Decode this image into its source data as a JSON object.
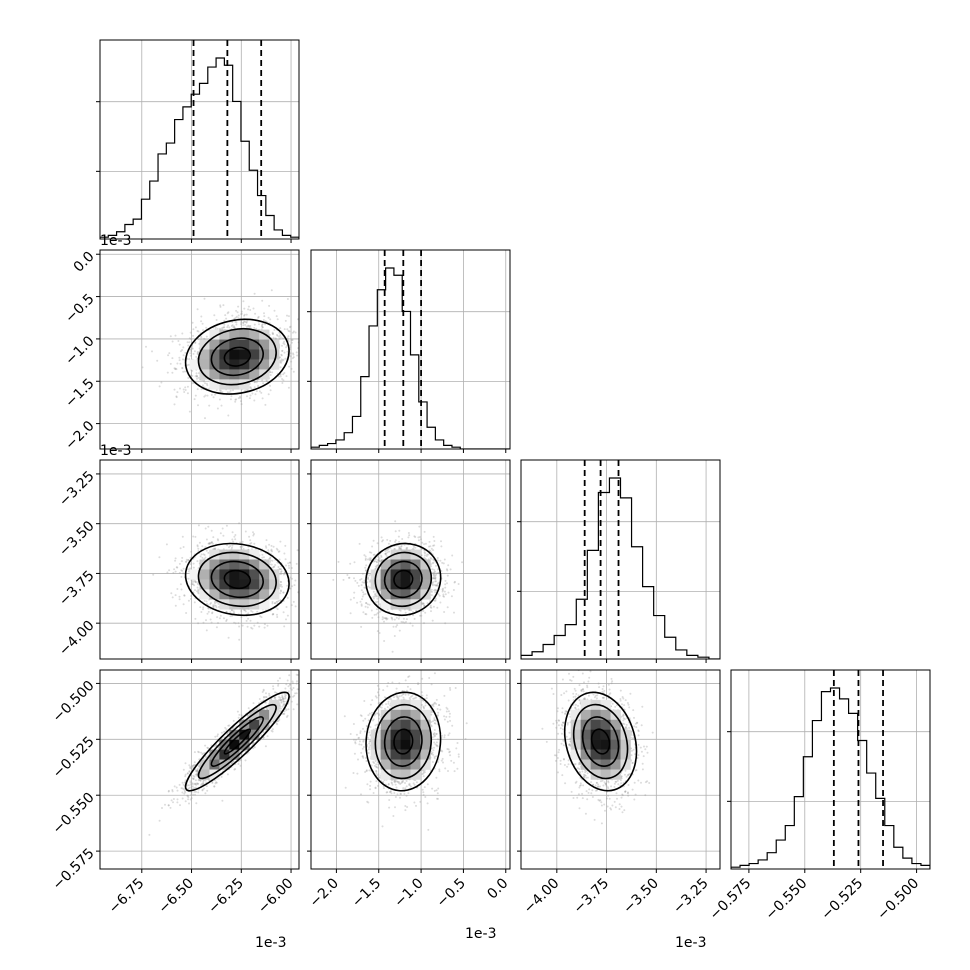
{
  "chart_data": {
    "type": "corner",
    "title": "",
    "colors": {
      "line": "#000000",
      "grid": "#b0b0b0",
      "scatter": "#9a9a9a",
      "density_max": "#000000"
    },
    "offset_labels": {
      "col0": "1e-3",
      "col1": "1e-3",
      "col2": "1e-3",
      "row1": "1e-3",
      "row2": "1e-3"
    },
    "parameters": [
      {
        "name": "",
        "mean": -6.27,
        "std": 0.13,
        "range": [
          -6.96,
          -5.96
        ],
        "ticks": [
          "−6.75",
          "−6.50",
          "−6.25",
          "−6.00"
        ],
        "tick_values": [
          -6.75,
          -6.5,
          -6.25,
          -6.0
        ],
        "quantiles": [
          -6.49,
          -6.32,
          -6.15
        ],
        "hist_density": [
          0.01,
          0.02,
          0.04,
          0.08,
          0.11,
          0.22,
          0.32,
          0.47,
          0.53,
          0.66,
          0.73,
          0.8,
          0.86,
          0.95,
          1.0,
          0.96,
          0.76,
          0.54,
          0.38,
          0.24,
          0.13,
          0.05,
          0.02,
          0.01
        ]
      },
      {
        "name": "",
        "mean": -1.21,
        "std": 0.22,
        "range": [
          -2.3,
          0.05
        ],
        "ticks": [
          "−2.0",
          "−1.5",
          "−1.0",
          "−0.5",
          "0.0"
        ],
        "tick_values": [
          -2.0,
          -1.5,
          -1.0,
          -0.5,
          0.0
        ],
        "quantiles": [
          -1.43,
          -1.21,
          -1.0
        ],
        "hist_density": [
          0.01,
          0.02,
          0.03,
          0.05,
          0.09,
          0.18,
          0.4,
          0.68,
          0.88,
          1.0,
          0.96,
          0.76,
          0.52,
          0.26,
          0.12,
          0.05,
          0.02,
          0.01,
          0.0,
          0.0,
          0.0,
          0.0,
          0.0,
          0.0
        ]
      },
      {
        "name": "",
        "mean": -3.78,
        "std": 0.09,
        "range": [
          -4.18,
          -3.18
        ],
        "ticks": [
          "−4.00",
          "−3.75",
          "−3.50",
          "−3.25"
        ],
        "tick_values": [
          -4.0,
          -3.75,
          -3.5,
          -3.25
        ],
        "quantiles": [
          -3.86,
          -3.78,
          -3.69
        ],
        "hist_density": [
          0.02,
          0.04,
          0.08,
          0.13,
          0.19,
          0.33,
          0.6,
          0.92,
          1.0,
          0.89,
          0.62,
          0.4,
          0.24,
          0.12,
          0.05,
          0.02,
          0.01,
          0.0
        ]
      },
      {
        "name": "",
        "mean": -0.526,
        "std": 0.011,
        "range": [
          -0.583,
          -0.494
        ],
        "ticks": [
          "−0.575",
          "−0.550",
          "−0.525",
          "−0.500"
        ],
        "tick_values": [
          -0.575,
          -0.55,
          -0.525,
          -0.5
        ],
        "quantiles": [
          -0.537,
          -0.526,
          -0.515
        ],
        "hist_density": [
          0.01,
          0.02,
          0.03,
          0.05,
          0.09,
          0.16,
          0.24,
          0.4,
          0.62,
          0.82,
          0.98,
          1.0,
          0.94,
          0.86,
          0.71,
          0.53,
          0.39,
          0.24,
          0.12,
          0.06,
          0.03,
          0.02
        ]
      }
    ],
    "correlations": {
      "1-0": 0.15,
      "2-0": -0.12,
      "2-1": 0.05,
      "3-0": 0.92,
      "3-1": 0.05,
      "3-2": -0.2
    },
    "contour_levels_sigma": [
      0.5,
      1.0,
      1.5,
      2.0
    ]
  }
}
